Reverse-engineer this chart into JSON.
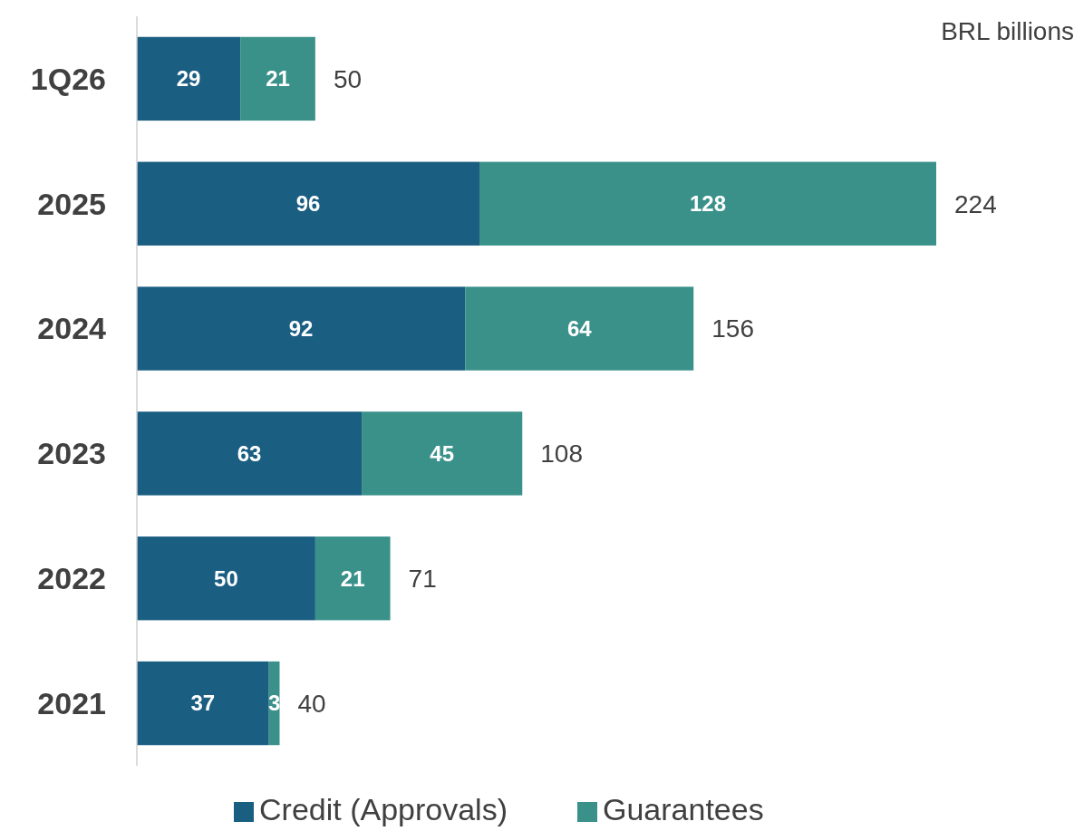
{
  "chart_data": {
    "type": "bar",
    "orientation": "horizontal",
    "stacked": true,
    "categories": [
      "1Q26",
      "2025",
      "2024",
      "2023",
      "2022",
      "2021"
    ],
    "series": [
      {
        "name": "Credit (Approvals)",
        "color": "#1a5e82",
        "values": [
          29,
          96,
          92,
          63,
          50,
          37
        ]
      },
      {
        "name": "Guarantees",
        "color": "#3a918a",
        "values": [
          21,
          128,
          64,
          45,
          21,
          3
        ]
      }
    ],
    "data_labels": true,
    "totals": [
      "50",
      "224",
      "156",
      "108",
      "71",
      "40"
    ],
    "annotations": [
      "BRL billions"
    ],
    "legend": "bottom"
  }
}
